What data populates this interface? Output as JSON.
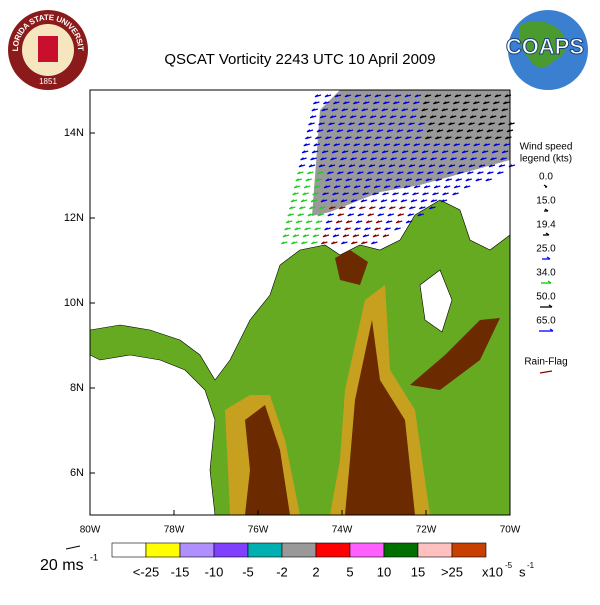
{
  "header": {
    "title": "QSCAT Vorticity 2243 UTC 10 April 2009"
  },
  "logos": {
    "seal_text": "FLORIDA STATE UNIVERSITY",
    "seal_year": "1851",
    "globe_text": "COAPS"
  },
  "map": {
    "lat_labels": [
      "14N",
      "12N",
      "10N",
      "8N",
      "6N"
    ],
    "lon_labels": [
      "80W",
      "78W",
      "76W",
      "74W",
      "72W",
      "70W"
    ]
  },
  "wind_legend": {
    "title_lines": [
      "Wind speed",
      "legend (kts)"
    ],
    "entries": [
      {
        "label": "0.0",
        "color": "#000000"
      },
      {
        "label": "15.0",
        "color": "#000000"
      },
      {
        "label": "19.4",
        "color": "#000000"
      },
      {
        "label": "25.0",
        "color": "#0000ff"
      },
      {
        "label": "34.0",
        "color": "#00cc00"
      },
      {
        "label": "50.0",
        "color": "#000000"
      },
      {
        "label": "65.0",
        "color": "#0000ff"
      }
    ],
    "extra": {
      "label": "Rain-Flag",
      "color": "#8b0000"
    }
  },
  "scale_arrow": {
    "value": "20 ms",
    "exp": "-1"
  },
  "colorbar": {
    "colors": [
      "#ffffff",
      "#ffff00",
      "#b090ff",
      "#8040ff",
      "#00b0b0",
      "#999999",
      "#ff0000",
      "#ff60ff",
      "#007000",
      "#ffc0c0",
      "#c84000"
    ],
    "labels": [
      "<-25",
      "-15",
      "-10",
      "-5",
      "-2",
      "2",
      "5",
      "10",
      "15",
      ">25"
    ],
    "unit": "x10",
    "unit_exp": "-5",
    "unit2": "s",
    "unit2_exp": "-1"
  }
}
